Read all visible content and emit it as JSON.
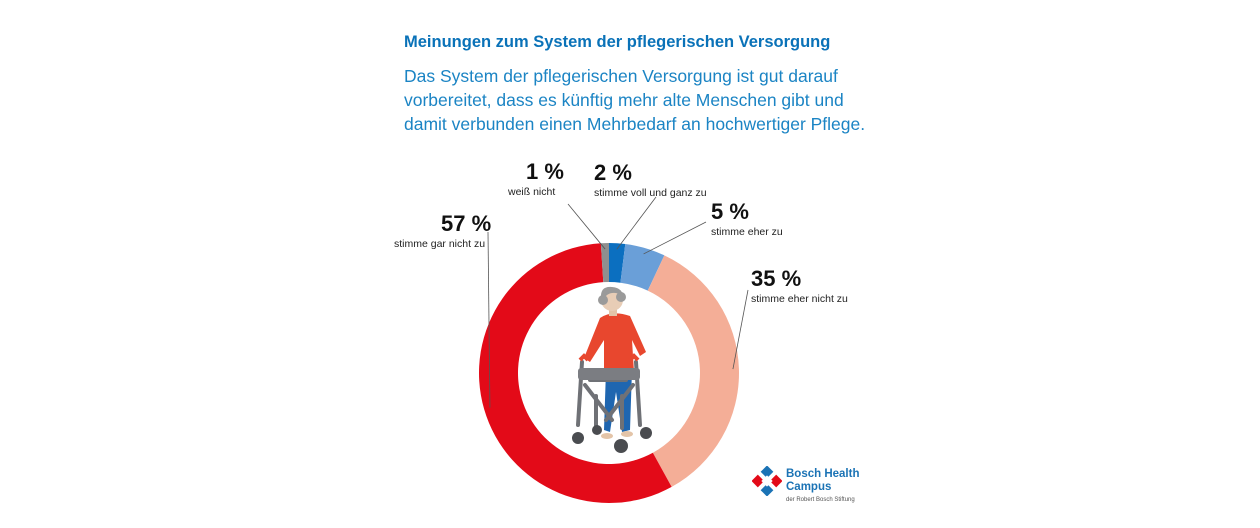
{
  "title": "Meinungen zum System der pflegerischen Versorgung",
  "subtitle": "Das System der pflegerischen Versorgung ist gut darauf vorbereitet, dass es künftig mehr alte Menschen gibt und damit verbunden einen Mehrbedarf an hochwertiger Pflege.",
  "chart_data": {
    "type": "pie",
    "donut": true,
    "slices": [
      {
        "label": "stimme voll und ganz zu",
        "value": 2,
        "display": "2 %",
        "color": "#0b6fc0"
      },
      {
        "label": "stimme eher zu",
        "value": 5,
        "display": "5 %",
        "color": "#6a9fd8"
      },
      {
        "label": "stimme eher nicht zu",
        "value": 35,
        "display": "35 %",
        "color": "#f4ae97"
      },
      {
        "label": "stimme gar nicht zu",
        "value": 57,
        "display": "57 %",
        "color": "#e30a18"
      },
      {
        "label": "weiß nicht",
        "value": 1,
        "display": "1 %",
        "color": "#8f8f8f"
      }
    ]
  },
  "logo": {
    "name_line1": "Bosch Health",
    "name_line2": "Campus",
    "subline": "der Robert Bosch Stiftung"
  },
  "illustration": "elderly-person-with-walker-icon"
}
